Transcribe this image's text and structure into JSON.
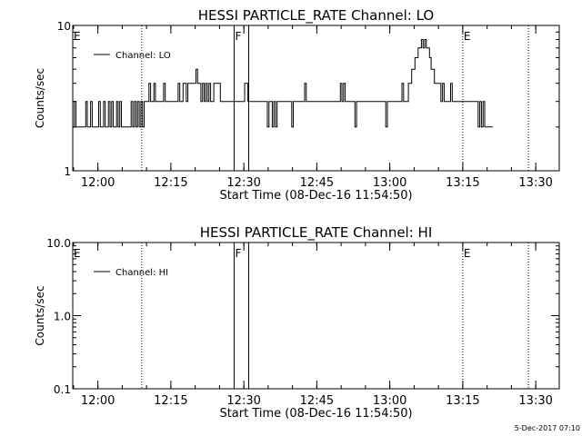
{
  "footer_timestamp": "5-Dec-2017 07:10",
  "chart_data": [
    {
      "type": "line",
      "title": "HESSI PARTICLE_RATE Channel: LO",
      "xlabel": "Start Time (08-Dec-16 11:54:50)",
      "ylabel": "Counts/sec",
      "y_scale": "log",
      "ylim": [
        1,
        10
      ],
      "xlim": [
        "11:54:50",
        "13:34:50"
      ],
      "yticks": [
        {
          "value": 1,
          "label": "1"
        },
        {
          "value": 10,
          "label": "10"
        }
      ],
      "xticks": [
        {
          "time": "12:00",
          "label": "12:00"
        },
        {
          "time": "12:15",
          "label": "12:15"
        },
        {
          "time": "12:30",
          "label": "12:30"
        },
        {
          "time": "12:45",
          "label": "12:45"
        },
        {
          "time": "13:00",
          "label": "13:00"
        },
        {
          "time": "13:15",
          "label": "13:15"
        },
        {
          "time": "13:30",
          "label": "13:30"
        }
      ],
      "grid": false,
      "legend": {
        "position": "top-left",
        "entries": [
          "Channel: LO"
        ]
      },
      "markers": [
        {
          "time": "11:54:50",
          "label": "E",
          "style": "dotted"
        },
        {
          "time": "12:09:00",
          "label": "",
          "style": "dotted"
        },
        {
          "time": "12:28:00",
          "label": "F",
          "style": "solid"
        },
        {
          "time": "12:31:00",
          "label": "",
          "style": "solid"
        },
        {
          "time": "13:15:00",
          "label": "E",
          "style": "dotted"
        },
        {
          "time": "13:28:30",
          "label": "",
          "style": "dotted"
        }
      ],
      "series": [
        {
          "name": "Channel: LO",
          "step_seconds": 20,
          "values": [
            2,
            3,
            2,
            2,
            2,
            2,
            2,
            2,
            3,
            2,
            2,
            3,
            2,
            2,
            2,
            2,
            3,
            2,
            2,
            3,
            2,
            2,
            3,
            2,
            3,
            2,
            2,
            3,
            2,
            3,
            2,
            2,
            2,
            2,
            2,
            2,
            3,
            2,
            3,
            2,
            3,
            2,
            3,
            2,
            3,
            3,
            3,
            4,
            3,
            3,
            4,
            3,
            3,
            3,
            3,
            3,
            4,
            3,
            3,
            3,
            3,
            3,
            3,
            3,
            3,
            4,
            3,
            3,
            4,
            4,
            3,
            4,
            4,
            4,
            4,
            4,
            5,
            4,
            4,
            3,
            4,
            3,
            4,
            3,
            4,
            3,
            3,
            4,
            4,
            4,
            4,
            3,
            3,
            3,
            3,
            3,
            3,
            3,
            3,
            3,
            3,
            3,
            3,
            3,
            3,
            3,
            4,
            4,
            3,
            3,
            3,
            3,
            3,
            3,
            3,
            3,
            3,
            3,
            3,
            3,
            2,
            3,
            3,
            2,
            3,
            2,
            3,
            3,
            3,
            3,
            3,
            3,
            3,
            3,
            3,
            2,
            3,
            3,
            3,
            3,
            3,
            3,
            3,
            4,
            3,
            3,
            3,
            3,
            3,
            3,
            3,
            3,
            3,
            3,
            3,
            3,
            3,
            3,
            3,
            3,
            3,
            3,
            3,
            3,
            3,
            4,
            3,
            4,
            3,
            3,
            3,
            3,
            3,
            3,
            2,
            3,
            3,
            3,
            3,
            3,
            3,
            3,
            3,
            3,
            3,
            3,
            3,
            3,
            3,
            3,
            3,
            3,
            3,
            2,
            3,
            3,
            3,
            3,
            3,
            3,
            3,
            3,
            3,
            4,
            3,
            3,
            3,
            4,
            4,
            5,
            5,
            6,
            6,
            7,
            7,
            8,
            7,
            8,
            7,
            7,
            6,
            5,
            5,
            4,
            4,
            4,
            4,
            3,
            4,
            3,
            3,
            3,
            3,
            4,
            3,
            3,
            3,
            3,
            3,
            3,
            3,
            3,
            3,
            3,
            3,
            3,
            3,
            3,
            3,
            3,
            2,
            3,
            2,
            3,
            2,
            2,
            2,
            2,
            2
          ]
        }
      ]
    },
    {
      "type": "line",
      "title": "HESSI PARTICLE_RATE Channel: HI",
      "xlabel": "Start Time (08-Dec-16 11:54:50)",
      "ylabel": "Counts/sec",
      "y_scale": "log",
      "ylim": [
        0.1,
        10.0
      ],
      "xlim": [
        "11:54:50",
        "13:34:50"
      ],
      "yticks": [
        {
          "value": 0.1,
          "label": "0.1"
        },
        {
          "value": 1.0,
          "label": "1.0"
        },
        {
          "value": 10.0,
          "label": "10.0"
        }
      ],
      "xticks": [
        {
          "time": "12:00",
          "label": "12:00"
        },
        {
          "time": "12:15",
          "label": "12:15"
        },
        {
          "time": "12:30",
          "label": "12:30"
        },
        {
          "time": "12:45",
          "label": "12:45"
        },
        {
          "time": "13:00",
          "label": "13:00"
        },
        {
          "time": "13:15",
          "label": "13:15"
        },
        {
          "time": "13:30",
          "label": "13:30"
        }
      ],
      "grid": false,
      "legend": {
        "position": "top-left",
        "entries": [
          "Channel: HI"
        ]
      },
      "markers": [
        {
          "time": "11:54:50",
          "label": "E",
          "style": "dotted"
        },
        {
          "time": "12:09:00",
          "label": "",
          "style": "dotted"
        },
        {
          "time": "12:28:00",
          "label": "F",
          "style": "solid"
        },
        {
          "time": "12:31:00",
          "label": "",
          "style": "solid"
        },
        {
          "time": "13:15:00",
          "label": "E",
          "style": "dotted"
        },
        {
          "time": "13:28:30",
          "label": "",
          "style": "dotted"
        }
      ],
      "series": [
        {
          "name": "Channel: HI",
          "values": []
        }
      ]
    }
  ]
}
